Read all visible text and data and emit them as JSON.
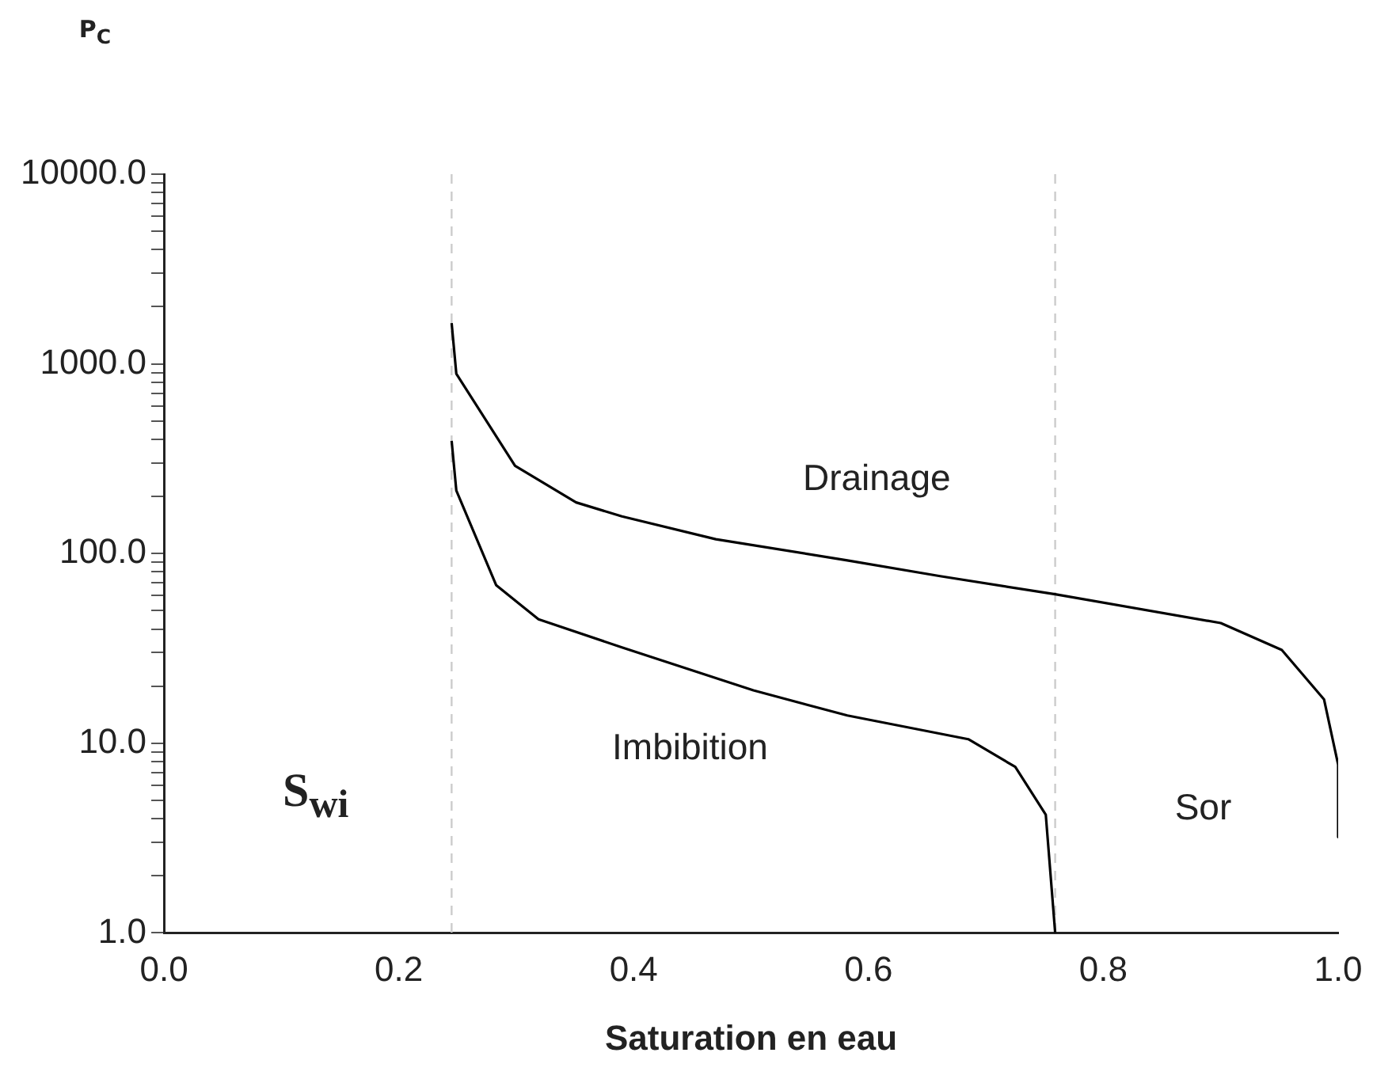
{
  "chart_data": {
    "type": "line",
    "xlabel": "Saturation en eau",
    "ylabel": "P$_{C}$",
    "log": "y",
    "grid": false,
    "legend": false,
    "marker": "none",
    "line_style": "solid",
    "series": [
      {
        "name": "Drainage",
        "color": "#000000",
        "x": [
          0.245,
          0.249,
          0.299,
          0.351,
          0.39,
          0.47,
          0.582,
          0.661,
          0.759,
          0.9,
          0.952,
          0.988,
          1.0,
          1.0
        ],
        "values": [
          1640,
          887,
          290,
          186,
          157,
          119,
          92,
          76,
          61,
          43,
          31,
          17,
          7.7,
          3.2
        ]
      },
      {
        "name": "Imbibition",
        "color": "#000000",
        "x": [
          0.245,
          0.249,
          0.283,
          0.319,
          0.39,
          0.502,
          0.582,
          0.685,
          0.725,
          0.751,
          0.759
        ],
        "values": [
          393,
          215,
          68,
          45,
          32,
          19,
          14,
          10.5,
          7.5,
          4.2,
          1.0
        ]
      }
    ],
    "xlim": [
      0,
      1
    ],
    "ylim": [
      1,
      10000
    ],
    "xticks": [
      {
        "value": 0,
        "label": "0.0"
      },
      {
        "value": 0.2,
        "label": "0.2"
      },
      {
        "value": 0.4,
        "label": "0.4"
      },
      {
        "value": 0.6,
        "label": "0.6"
      },
      {
        "value": 0.8,
        "label": "0.8"
      },
      {
        "value": 1,
        "label": "1.0"
      }
    ],
    "yticks": [
      {
        "value": 1,
        "label": "1.0"
      },
      {
        "value": 2,
        "label": null
      },
      {
        "value": 3,
        "label": null
      },
      {
        "value": 4,
        "label": null
      },
      {
        "value": 5,
        "label": null
      },
      {
        "value": 6,
        "label": null
      },
      {
        "value": 7,
        "label": null
      },
      {
        "value": 8,
        "label": null
      },
      {
        "value": 9,
        "label": null
      },
      {
        "value": 10,
        "label": "10.0"
      },
      {
        "value": 20,
        "label": null
      },
      {
        "value": 30,
        "label": null
      },
      {
        "value": 40,
        "label": null
      },
      {
        "value": 50,
        "label": null
      },
      {
        "value": 60,
        "label": null
      },
      {
        "value": 70,
        "label": null
      },
      {
        "value": 80,
        "label": null
      },
      {
        "value": 90,
        "label": null
      },
      {
        "value": 100,
        "label": "100.0"
      },
      {
        "value": 200,
        "label": null
      },
      {
        "value": 300,
        "label": null
      },
      {
        "value": 400,
        "label": null
      },
      {
        "value": 500,
        "label": null
      },
      {
        "value": 600,
        "label": null
      },
      {
        "value": 700,
        "label": null
      },
      {
        "value": 800,
        "label": null
      },
      {
        "value": 900,
        "label": null
      },
      {
        "value": 1000,
        "label": "1000.0"
      },
      {
        "value": 2000,
        "label": null
      },
      {
        "value": 3000,
        "label": null
      },
      {
        "value": 4000,
        "label": null
      },
      {
        "value": 5000,
        "label": null
      },
      {
        "value": 6000,
        "label": null
      },
      {
        "value": 7000,
        "label": null
      },
      {
        "value": 8000,
        "label": null
      },
      {
        "value": 9000,
        "label": null
      },
      {
        "value": 10000,
        "label": "10000.0"
      }
    ],
    "ref_lines": [
      {
        "axis": "x",
        "value": 0.245,
        "label": "S$_{wi}$",
        "color": "#cccccc",
        "line_style": "dashed"
      },
      {
        "axis": "x",
        "value": 0.759,
        "color": "#cccccc",
        "line_style": "dashed"
      }
    ],
    "annotations": [
      "Sor"
    ]
  }
}
